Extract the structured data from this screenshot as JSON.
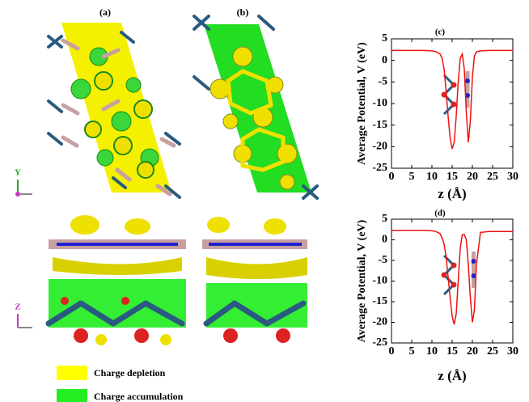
{
  "panels": {
    "a": "(a)",
    "b": "(b)"
  },
  "axis_indicators": [
    "Y",
    "Z"
  ],
  "legend": [
    {
      "label": "Charge depletion",
      "color": "#ffff00"
    },
    {
      "label": "Charge accumulation",
      "color": "#22ee22"
    }
  ],
  "chart_data": [
    {
      "type": "line",
      "title": "(c)",
      "xlabel": "z (Å)",
      "ylabel": "Average Potential, V (eV)",
      "x": [
        0,
        2,
        4,
        6,
        8,
        10,
        11,
        12,
        12.5,
        13,
        13.5,
        14,
        14.5,
        15,
        15.5,
        16,
        16.5,
        17,
        17.5,
        18,
        18.5,
        19,
        19.5,
        20,
        20.5,
        21,
        22,
        24,
        26,
        28,
        30
      ],
      "series": [
        {
          "color": "#ee1111",
          "values": [
            2.3,
            2.3,
            2.3,
            2.3,
            2.3,
            2.2,
            2.0,
            1.5,
            0.5,
            -2,
            -7,
            -13,
            -18,
            -20.5,
            -19,
            -13,
            -5,
            0.5,
            1.5,
            -2,
            -12,
            -19,
            -14,
            -4,
            1,
            2,
            2.2,
            2.3,
            2.3,
            2.3,
            2.3
          ]
        }
      ],
      "xlim": [
        0,
        30
      ],
      "xticks": [
        0,
        5,
        10,
        15,
        20,
        25,
        30
      ],
      "ylim": [
        -25,
        5
      ],
      "yticks": [
        -25,
        -20,
        -15,
        -10,
        -5,
        0,
        5
      ]
    },
    {
      "type": "line",
      "title": "(d)",
      "xlabel": "z (Å)",
      "ylabel": "Average Potential, V (eV)",
      "x": [
        0,
        2,
        4,
        6,
        8,
        10,
        11,
        12,
        12.5,
        13,
        13.5,
        14,
        14.5,
        15,
        15.5,
        16,
        16.5,
        17,
        17.5,
        18,
        18.5,
        19,
        19.5,
        20,
        20.5,
        21,
        22,
        24,
        26,
        28,
        30
      ],
      "series": [
        {
          "color": "#ee1111",
          "values": [
            2.3,
            2.3,
            2.3,
            2.3,
            2.3,
            2.2,
            2.0,
            1.5,
            0.5,
            -1,
            -4,
            -9,
            -14,
            -18.5,
            -20.5,
            -18,
            -10,
            -2,
            1.2,
            1.3,
            0,
            -6,
            -14,
            -20,
            -17,
            -6,
            1.8,
            2.0,
            2.0,
            2.0,
            2.0
          ]
        }
      ],
      "xlim": [
        0,
        30
      ],
      "xticks": [
        0,
        5,
        10,
        15,
        20,
        25,
        30
      ],
      "ylim": [
        -25,
        5
      ],
      "yticks": [
        -25,
        -20,
        -15,
        -10,
        -5,
        0,
        5
      ]
    }
  ]
}
